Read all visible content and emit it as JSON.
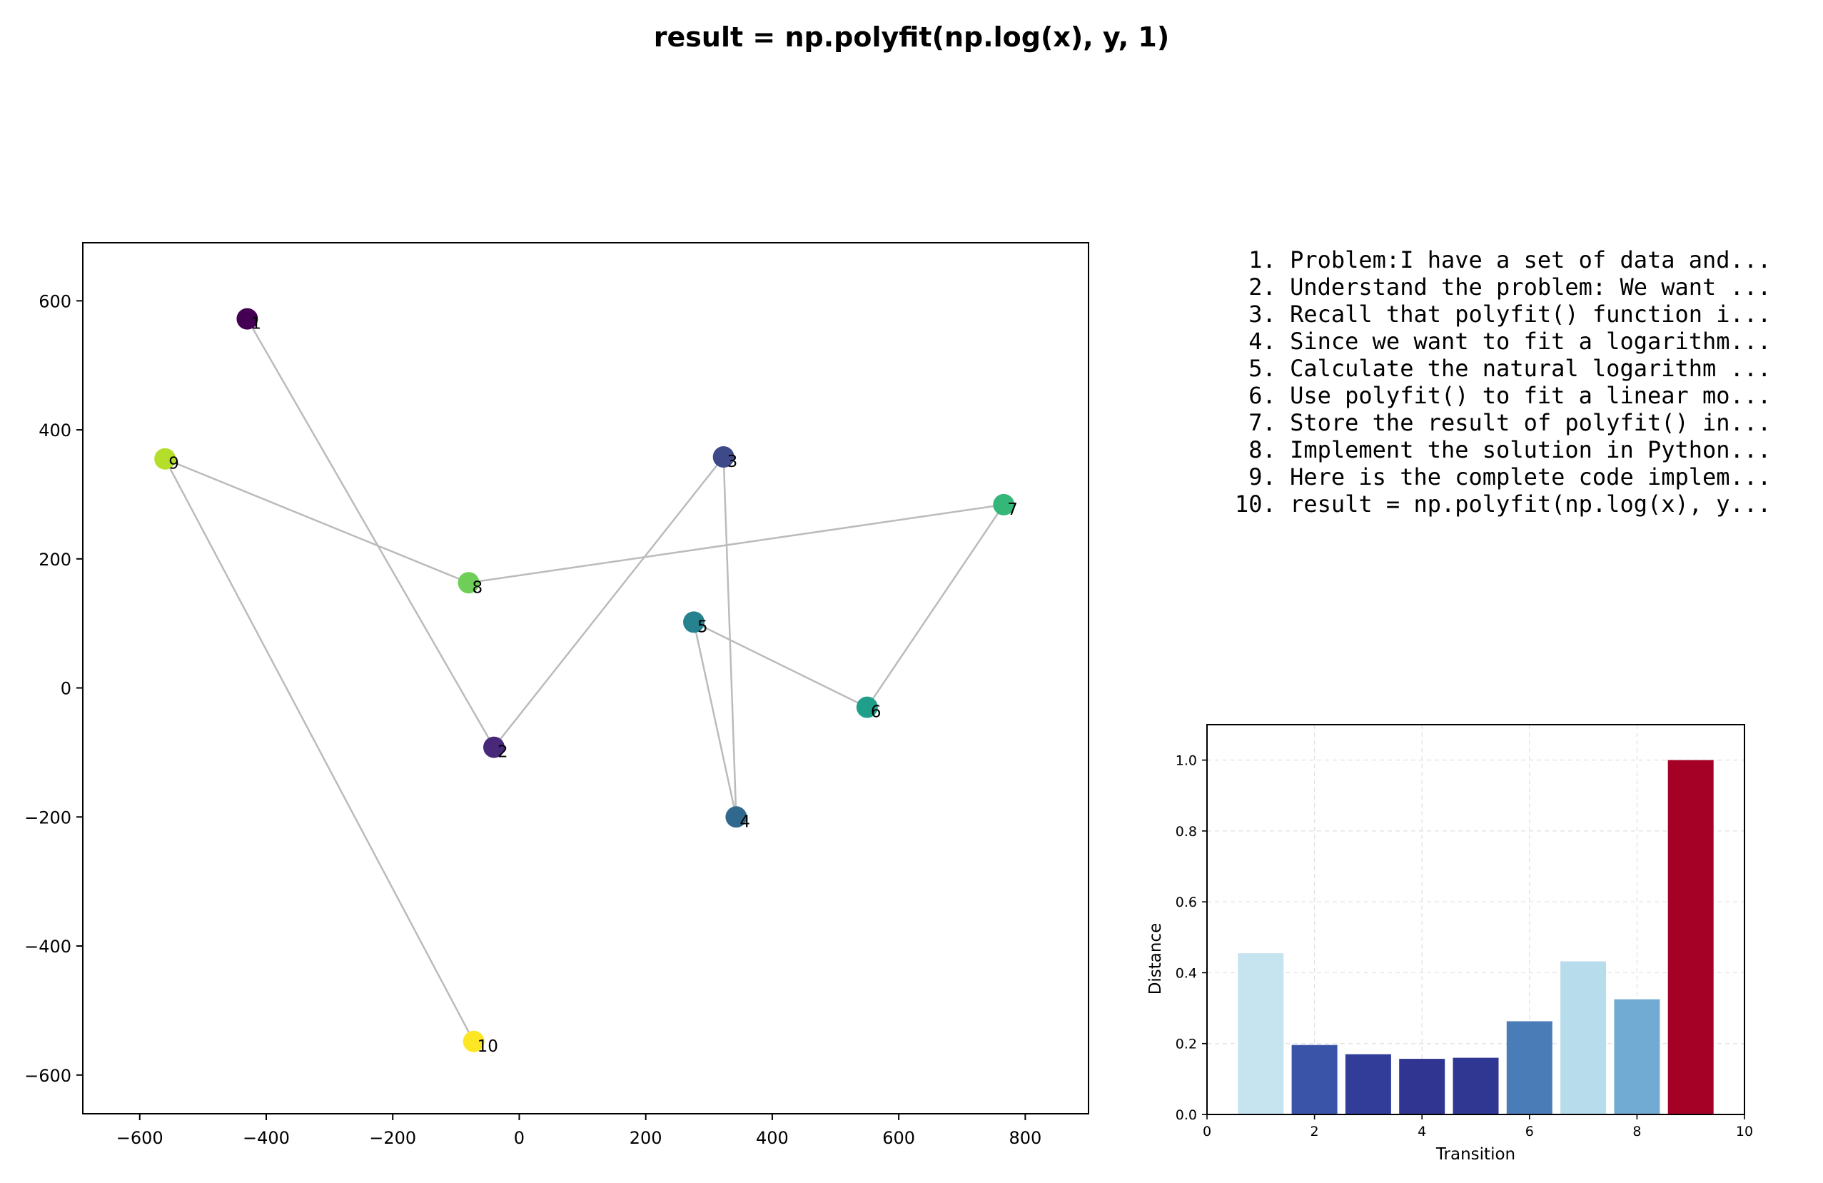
{
  "title": "result = np.polyfit(np.log(x), y, 1)",
  "steps": [
    " 1. Problem:I have a set of data and...",
    " 2. Understand the problem: We want ...",
    " 3. Recall that polyfit() function i...",
    " 4. Since we want to fit a logarithm...",
    " 5. Calculate the natural logarithm ...",
    " 6. Use polyfit() to fit a linear mo...",
    " 7. Store the result of polyfit() in...",
    " 8. Implement the solution in Python...",
    " 9. Here is the complete code implem...",
    "10. result = np.polyfit(np.log(x), y..."
  ],
  "chart_data": [
    {
      "type": "scatter",
      "title": "",
      "xlabel": "",
      "ylabel": "",
      "xlim": [
        -690,
        900
      ],
      "ylim": [
        -660,
        690
      ],
      "xticks": [
        -600,
        -400,
        -200,
        0,
        200,
        400,
        600,
        800
      ],
      "yticks": [
        -600,
        -400,
        -200,
        0,
        200,
        400,
        600
      ],
      "grid": false,
      "connect_points": true,
      "line_color": "#bbbbbb",
      "colormap": "viridis",
      "points": [
        {
          "label": "1",
          "x": -430,
          "y": 572,
          "color": "#440154"
        },
        {
          "label": "2",
          "x": -40,
          "y": -92,
          "color": "#482878"
        },
        {
          "label": "3",
          "x": 323,
          "y": 358,
          "color": "#3e4989"
        },
        {
          "label": "4",
          "x": 343,
          "y": -200,
          "color": "#31688e"
        },
        {
          "label": "5",
          "x": 276,
          "y": 102,
          "color": "#26828e"
        },
        {
          "label": "6",
          "x": 550,
          "y": -30,
          "color": "#1f9e89"
        },
        {
          "label": "7",
          "x": 766,
          "y": 284,
          "color": "#35b779"
        },
        {
          "label": "8",
          "x": -80,
          "y": 163,
          "color": "#6ece58"
        },
        {
          "label": "9",
          "x": -560,
          "y": 355,
          "color": "#b5de2b"
        },
        {
          "label": "10",
          "x": -72,
          "y": -548,
          "color": "#fde725"
        }
      ]
    },
    {
      "type": "bar",
      "title": "",
      "xlabel": "Transition",
      "ylabel": "Distance",
      "xlim": [
        0,
        10
      ],
      "ylim": [
        0,
        1.1
      ],
      "xticks": [
        0,
        2,
        4,
        6,
        8,
        10
      ],
      "yticks": [
        0.0,
        0.2,
        0.4,
        0.6,
        0.8,
        1.0
      ],
      "tick_format": 1,
      "grid": true,
      "bar_width": 0.85,
      "categories": [
        1,
        2,
        3,
        4,
        5,
        6,
        7,
        8,
        9
      ],
      "values": [
        0.455,
        0.196,
        0.17,
        0.157,
        0.16,
        0.263,
        0.432,
        0.325,
        1.0
      ],
      "colors": [
        "#c6e4f0",
        "#3a55a7",
        "#323c99",
        "#2f3591",
        "#303793",
        "#4a7db8",
        "#b7dded",
        "#71abd3",
        "#a50026"
      ]
    }
  ]
}
